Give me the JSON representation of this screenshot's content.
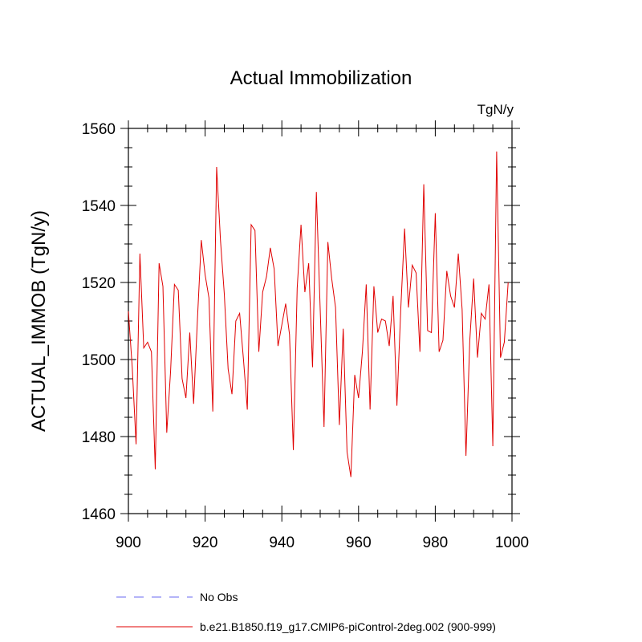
{
  "chart_data": {
    "type": "line",
    "title": "Actual Immobilization",
    "units_label": "TgN/y",
    "xlabel": "",
    "ylabel": "ACTUAL_IMMOB  (TgN/y)",
    "xlim": [
      900,
      1000
    ],
    "ylim": [
      1460,
      1560
    ],
    "x_ticks": [
      900,
      920,
      940,
      960,
      980,
      1000
    ],
    "y_ticks": [
      1460,
      1480,
      1500,
      1520,
      1540,
      1560
    ],
    "x_tick_labels": [
      "900",
      "920",
      "940",
      "960",
      "980",
      "1000"
    ],
    "y_tick_labels": [
      "1460",
      "1480",
      "1500",
      "1520",
      "1540",
      "1560"
    ],
    "grid": false,
    "series": [
      {
        "name": "b.e21.B1850.f19_g17.CMIP6-piControl-2deg.002 (900-999)",
        "color": "#e00000",
        "x": [
          900,
          901,
          902,
          903,
          904,
          905,
          906,
          907,
          908,
          909,
          910,
          911,
          912,
          913,
          914,
          915,
          916,
          917,
          918,
          919,
          920,
          921,
          922,
          923,
          924,
          925,
          926,
          927,
          928,
          929,
          930,
          931,
          932,
          933,
          934,
          935,
          936,
          937,
          938,
          939,
          940,
          941,
          942,
          943,
          944,
          945,
          946,
          947,
          948,
          949,
          950,
          951,
          952,
          953,
          954,
          955,
          956,
          957,
          958,
          959,
          960,
          961,
          962,
          963,
          964,
          965,
          966,
          967,
          968,
          969,
          970,
          971,
          972,
          973,
          974,
          975,
          976,
          977,
          978,
          979,
          980,
          981,
          982,
          983,
          984,
          985,
          986,
          987,
          988,
          989,
          990,
          991,
          992,
          993,
          994,
          995,
          996,
          997,
          998,
          999
        ],
        "values": [
          1512.5,
          1498,
          1478,
          1527.5,
          1503,
          1504.5,
          1502,
          1471.5,
          1525,
          1519,
          1481,
          1497,
          1519.5,
          1518,
          1495,
          1490,
          1507,
          1488.5,
          1510.5,
          1531,
          1522,
          1516,
          1486.5,
          1550,
          1531,
          1517,
          1497.5,
          1491,
          1510,
          1512,
          1500,
          1487,
          1535,
          1533.5,
          1502,
          1517.5,
          1521.5,
          1529,
          1523.5,
          1503.5,
          1509,
          1514.5,
          1506.5,
          1476.5,
          1518.5,
          1535,
          1517.5,
          1525,
          1498,
          1543.5,
          1513,
          1482.5,
          1530.5,
          1521,
          1513.5,
          1483,
          1508,
          1476,
          1469.5,
          1496,
          1490,
          1502,
          1519.5,
          1487,
          1519,
          1507,
          1510.5,
          1510,
          1503.5,
          1516.5,
          1488,
          1513,
          1534,
          1513.5,
          1524.5,
          1522.5,
          1502,
          1545.5,
          1507.5,
          1507,
          1538,
          1502,
          1505,
          1523,
          1516.5,
          1513.5,
          1527.5,
          1513,
          1475,
          1505,
          1521,
          1500.5,
          1512,
          1510.5,
          1519.5,
          1477.5,
          1554,
          1500.5,
          1504.5,
          1520
        ]
      },
      {
        "name": "No Obs",
        "color": "#6a6af0",
        "dashed": true,
        "x": [],
        "values": []
      }
    ],
    "legend_position": "bottom-left"
  }
}
